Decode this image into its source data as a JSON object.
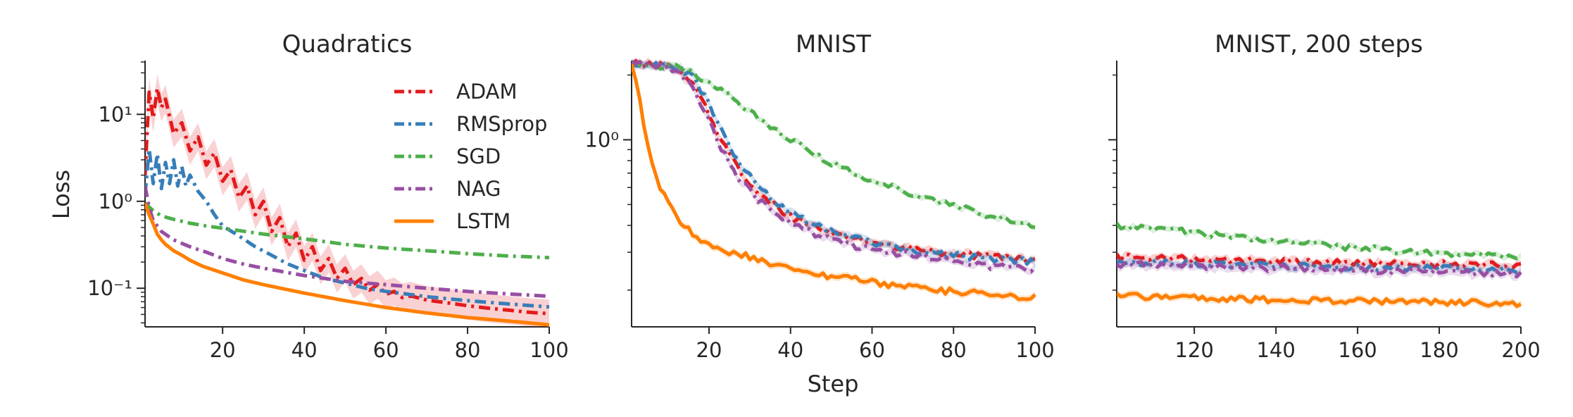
{
  "figure": {
    "shared_ylabel": "Loss",
    "shared_xlabel": "Step"
  },
  "legend": {
    "placement": "inside top-right of first panel",
    "entries": [
      {
        "label": "ADAM",
        "color": "#e41a1c",
        "dash": "dashdot"
      },
      {
        "label": "RMSprop",
        "color": "#377eb8",
        "dash": "dashdot"
      },
      {
        "label": "SGD",
        "color": "#4daf4a",
        "dash": "dashdot"
      },
      {
        "label": "NAG",
        "color": "#984ea3",
        "dash": "dashdot"
      },
      {
        "label": "LSTM",
        "color": "#ff7f00",
        "dash": "solid"
      }
    ]
  },
  "chart_data": [
    {
      "type": "line",
      "title": "Quadratics",
      "xlabel": "",
      "ylabel": "Loss",
      "yscale": "log",
      "xlim": [
        1,
        100
      ],
      "ylim": [
        0.036,
        40
      ],
      "xticks": [
        20,
        40,
        60,
        80,
        100
      ],
      "yticks": [
        {
          "v": 10,
          "label": "10¹"
        },
        {
          "v": 1,
          "label": "10⁰"
        },
        {
          "v": 0.1,
          "label": "10⁻¹"
        }
      ],
      "grid": false,
      "series": [
        {
          "name": "ADAM",
          "x": [
            1,
            2,
            3,
            4,
            5,
            6,
            8,
            10,
            12,
            14,
            16,
            18,
            20,
            22,
            24,
            26,
            28,
            30,
            32,
            34,
            36,
            38,
            40,
            42,
            44,
            46,
            48,
            50,
            52,
            54,
            56,
            58,
            60,
            62,
            64,
            66,
            70,
            75,
            80,
            85,
            90,
            95,
            100
          ],
          "y": [
            2.0,
            18,
            9,
            20,
            12,
            15,
            6,
            8,
            3.8,
            5.5,
            2.6,
            3.6,
            1.7,
            2.3,
            1.1,
            1.5,
            0.7,
            1.0,
            0.45,
            0.65,
            0.3,
            0.43,
            0.21,
            0.3,
            0.16,
            0.22,
            0.13,
            0.17,
            0.11,
            0.13,
            0.095,
            0.11,
            0.085,
            0.092,
            0.078,
            0.082,
            0.073,
            0.068,
            0.063,
            0.059,
            0.056,
            0.053,
            0.051
          ],
          "band": 0.45
        },
        {
          "name": "RMSprop",
          "x": [
            1,
            2,
            3,
            4,
            5,
            6,
            7,
            8,
            9,
            10,
            11,
            12,
            14,
            16,
            18,
            20,
            24,
            28,
            32,
            36,
            40,
            45,
            50,
            55,
            60,
            70,
            80,
            90,
            100
          ],
          "y": [
            1.2,
            4,
            1.6,
            3.5,
            1.4,
            2.8,
            1.6,
            3.0,
            1.5,
            2.5,
            1.5,
            2.0,
            1.3,
            1.0,
            0.7,
            0.52,
            0.4,
            0.3,
            0.24,
            0.19,
            0.16,
            0.13,
            0.115,
            0.1,
            0.092,
            0.08,
            0.072,
            0.066,
            0.061
          ],
          "band": 0
        },
        {
          "name": "SGD",
          "x": [
            1,
            3,
            5,
            8,
            12,
            16,
            20,
            30,
            40,
            50,
            60,
            70,
            80,
            90,
            100
          ],
          "y": [
            0.95,
            0.78,
            0.68,
            0.62,
            0.56,
            0.52,
            0.49,
            0.42,
            0.37,
            0.32,
            0.29,
            0.27,
            0.25,
            0.235,
            0.225
          ],
          "band": 0
        },
        {
          "name": "NAG",
          "x": [
            1,
            2,
            3,
            5,
            8,
            12,
            16,
            20,
            25,
            30,
            40,
            50,
            60,
            70,
            80,
            90,
            100
          ],
          "y": [
            1.5,
            0.85,
            0.6,
            0.45,
            0.36,
            0.3,
            0.26,
            0.22,
            0.19,
            0.17,
            0.14,
            0.12,
            0.11,
            0.1,
            0.092,
            0.086,
            0.081
          ],
          "band": 0
        },
        {
          "name": "LSTM",
          "x": [
            1,
            2,
            3,
            4,
            5,
            6,
            8,
            10,
            12,
            15,
            20,
            25,
            30,
            40,
            50,
            60,
            70,
            80,
            90,
            100
          ],
          "y": [
            0.95,
            0.7,
            0.55,
            0.42,
            0.36,
            0.32,
            0.27,
            0.24,
            0.21,
            0.18,
            0.15,
            0.125,
            0.11,
            0.088,
            0.072,
            0.06,
            0.052,
            0.046,
            0.042,
            0.038
          ],
          "band": 0
        }
      ]
    },
    {
      "type": "line",
      "title": "MNIST",
      "xlabel": "Step",
      "ylabel": "",
      "yscale": "log",
      "xlim": [
        1,
        100
      ],
      "ylim": [
        0.135,
        2.3
      ],
      "xticks": [
        20,
        40,
        60,
        80,
        100
      ],
      "yticks": [
        {
          "v": 1,
          "label": "10⁰"
        }
      ],
      "grid": false,
      "series": [
        {
          "name": "ADAM",
          "x": [
            1,
            5,
            10,
            13,
            16,
            19,
            22,
            25,
            28,
            31,
            34,
            37,
            40,
            45,
            50,
            55,
            60,
            65,
            70,
            75,
            80,
            85,
            90,
            95,
            100
          ],
          "y": [
            2.25,
            2.25,
            2.2,
            2.1,
            1.85,
            1.45,
            1.1,
            0.85,
            0.7,
            0.6,
            0.53,
            0.48,
            0.44,
            0.4,
            0.37,
            0.35,
            0.335,
            0.32,
            0.31,
            0.3,
            0.295,
            0.29,
            0.285,
            0.28,
            0.275
          ],
          "band": 0.04
        },
        {
          "name": "RMSprop",
          "x": [
            1,
            5,
            10,
            13,
            16,
            19,
            22,
            25,
            28,
            31,
            34,
            37,
            40,
            45,
            50,
            55,
            60,
            65,
            70,
            75,
            80,
            85,
            90,
            95,
            100
          ],
          "y": [
            2.25,
            2.25,
            2.2,
            2.15,
            1.95,
            1.6,
            1.2,
            0.92,
            0.75,
            0.64,
            0.56,
            0.5,
            0.46,
            0.41,
            0.375,
            0.35,
            0.335,
            0.32,
            0.305,
            0.295,
            0.29,
            0.285,
            0.28,
            0.275,
            0.27
          ],
          "band": 0.04
        },
        {
          "name": "SGD",
          "x": [
            1,
            5,
            10,
            13,
            16,
            20,
            25,
            30,
            35,
            40,
            45,
            50,
            55,
            60,
            65,
            70,
            75,
            80,
            85,
            90,
            95,
            100
          ],
          "y": [
            2.25,
            2.25,
            2.2,
            2.15,
            2.05,
            1.85,
            1.6,
            1.35,
            1.15,
            1.0,
            0.88,
            0.78,
            0.71,
            0.65,
            0.6,
            0.56,
            0.52,
            0.49,
            0.465,
            0.44,
            0.42,
            0.4
          ],
          "band": 0.03
        },
        {
          "name": "NAG",
          "x": [
            1,
            5,
            10,
            13,
            16,
            19,
            22,
            25,
            28,
            31,
            34,
            37,
            40,
            45,
            50,
            55,
            60,
            65,
            70,
            75,
            80,
            85,
            90,
            95,
            100
          ],
          "y": [
            2.25,
            2.25,
            2.2,
            2.05,
            1.75,
            1.35,
            1.0,
            0.78,
            0.64,
            0.55,
            0.49,
            0.44,
            0.41,
            0.37,
            0.345,
            0.325,
            0.31,
            0.3,
            0.29,
            0.28,
            0.272,
            0.265,
            0.258,
            0.252,
            0.248
          ],
          "band": 0.04
        },
        {
          "name": "LSTM",
          "x": [
            1,
            2,
            3,
            4,
            5,
            6,
            8,
            10,
            12,
            14,
            16,
            18,
            20,
            25,
            30,
            35,
            40,
            45,
            50,
            55,
            60,
            65,
            70,
            75,
            80,
            85,
            90,
            95,
            100
          ],
          "y": [
            2.25,
            1.95,
            1.55,
            1.2,
            0.95,
            0.78,
            0.6,
            0.5,
            0.44,
            0.4,
            0.37,
            0.345,
            0.33,
            0.3,
            0.285,
            0.268,
            0.255,
            0.243,
            0.232,
            0.225,
            0.218,
            0.212,
            0.207,
            0.2,
            0.197,
            0.194,
            0.191,
            0.188,
            0.186
          ],
          "band": 0.04
        }
      ]
    },
    {
      "type": "line",
      "title": "MNIST, 200 steps",
      "xlabel": "",
      "ylabel": "",
      "yscale": "log",
      "xlim": [
        101,
        200
      ],
      "ylim": [
        0.135,
        2.3
      ],
      "xticks": [
        120,
        140,
        160,
        180,
        200
      ],
      "yticks": [
        {
          "v": 1,
          "label": ""
        }
      ],
      "grid": false,
      "series": [
        {
          "name": "ADAM",
          "x": [
            101,
            110,
            120,
            130,
            140,
            150,
            160,
            170,
            180,
            190,
            200
          ],
          "y": [
            0.285,
            0.283,
            0.278,
            0.275,
            0.272,
            0.27,
            0.268,
            0.266,
            0.264,
            0.262,
            0.26
          ],
          "band": 0.04
        },
        {
          "name": "RMSprop",
          "x": [
            101,
            110,
            120,
            130,
            140,
            150,
            160,
            170,
            180,
            190,
            200
          ],
          "y": [
            0.27,
            0.268,
            0.265,
            0.262,
            0.26,
            0.258,
            0.256,
            0.254,
            0.252,
            0.25,
            0.248
          ],
          "band": 0.04
        },
        {
          "name": "SGD",
          "x": [
            101,
            110,
            120,
            130,
            140,
            150,
            160,
            170,
            180,
            190,
            200
          ],
          "y": [
            0.4,
            0.385,
            0.37,
            0.355,
            0.34,
            0.325,
            0.315,
            0.305,
            0.298,
            0.29,
            0.285
          ],
          "band": 0.03
        },
        {
          "name": "NAG",
          "x": [
            101,
            110,
            120,
            130,
            140,
            150,
            160,
            170,
            180,
            190,
            200
          ],
          "y": [
            0.265,
            0.262,
            0.258,
            0.255,
            0.252,
            0.25,
            0.247,
            0.245,
            0.242,
            0.24,
            0.238
          ],
          "band": 0.05
        },
        {
          "name": "LSTM",
          "x": [
            101,
            110,
            120,
            130,
            140,
            150,
            160,
            170,
            180,
            190,
            200
          ],
          "y": [
            0.188,
            0.186,
            0.184,
            0.182,
            0.18,
            0.179,
            0.178,
            0.177,
            0.176,
            0.175,
            0.174
          ],
          "band": 0.04
        }
      ]
    }
  ]
}
